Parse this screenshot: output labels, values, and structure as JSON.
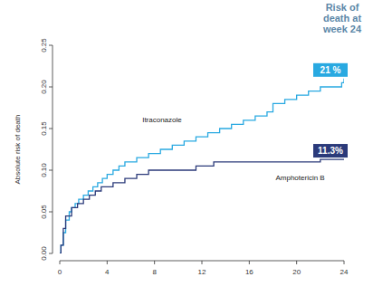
{
  "chart_data": {
    "type": "line",
    "y_label": "Absolute risk of death",
    "xlim": [
      0,
      24
    ],
    "xticks": [
      0,
      4,
      8,
      12,
      16,
      20,
      24
    ],
    "ylim": [
      0,
      0.25
    ],
    "yticks": [
      {
        "value": 0,
        "label": "0.00"
      },
      0.05,
      {
        "value": 0.1,
        "label": "0.10"
      },
      0.15,
      {
        "value": 0.2,
        "label": "0.20"
      },
      0.25
    ],
    "grid": false,
    "series": [
      {
        "name": "Itraconazole",
        "color": "#29a9e1",
        "x": [
          0,
          0.1,
          0.3,
          0.5,
          0.8,
          1.0,
          1.3,
          1.6,
          2.0,
          2.4,
          2.8,
          3.2,
          3.6,
          4.0,
          4.5,
          5.0,
          5.5,
          6.5,
          7.5,
          8.5,
          9.5,
          10.5,
          11.5,
          12.5,
          13.5,
          14.5,
          15.5,
          16.5,
          17.5,
          18.0,
          19.0,
          20.0,
          21.0,
          22.0,
          23.0,
          23.8,
          24
        ],
        "values": [
          0,
          0.01,
          0.025,
          0.04,
          0.05,
          0.055,
          0.06,
          0.065,
          0.07,
          0.075,
          0.08,
          0.085,
          0.09,
          0.095,
          0.1,
          0.105,
          0.11,
          0.115,
          0.12,
          0.125,
          0.13,
          0.135,
          0.14,
          0.145,
          0.15,
          0.155,
          0.16,
          0.165,
          0.17,
          0.18,
          0.185,
          0.19,
          0.195,
          0.2,
          0.2,
          0.205,
          0.21
        ]
      },
      {
        "name": "Amphotericin B",
        "color": "#2b3a7a",
        "x": [
          0,
          0.1,
          0.3,
          0.5,
          1.0,
          1.5,
          2.0,
          2.5,
          3.0,
          3.5,
          4.5,
          5.5,
          6.5,
          7.5,
          11.5,
          13.0,
          22.0,
          24
        ],
        "values": [
          0,
          0.01,
          0.03,
          0.045,
          0.055,
          0.06,
          0.065,
          0.07,
          0.075,
          0.08,
          0.085,
          0.09,
          0.095,
          0.1,
          0.105,
          0.11,
          0.113,
          0.113
        ]
      }
    ],
    "annotations": [
      {
        "text": "Risk of death at week 24"
      },
      {
        "text": "21 %",
        "x": 24,
        "y": 0.21,
        "color": "#29a9e1"
      },
      {
        "text": "11.3%",
        "x": 24,
        "y": 0.113,
        "color": "#2b3a7a"
      }
    ]
  }
}
